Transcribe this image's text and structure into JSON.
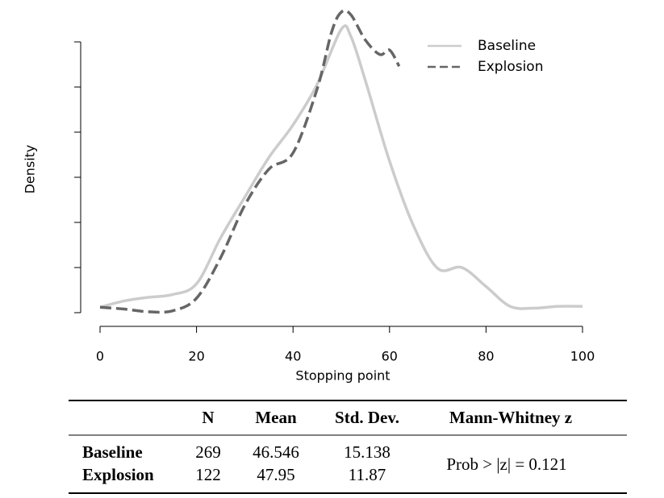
{
  "chart_data": {
    "type": "line",
    "x_label": "Stopping point",
    "y_label": "Density",
    "xlim": [
      0,
      100
    ],
    "xticks": [
      0,
      20,
      40,
      60,
      80,
      100
    ],
    "ylim": [
      0,
      0.03
    ],
    "yticks": [
      0,
      0.005,
      0.01,
      0.015,
      0.02,
      0.025,
      0.03
    ],
    "legend": "top-right",
    "series": [
      {
        "name": "Baseline",
        "color": "#cccccc",
        "dash": false,
        "x": [
          0,
          5,
          10,
          15,
          20,
          25,
          30,
          35,
          40,
          45,
          50,
          52,
          55,
          60,
          65,
          70,
          75,
          80,
          85,
          90,
          95,
          100
        ],
        "values": [
          0.0006,
          0.0013,
          0.0017,
          0.002,
          0.0032,
          0.0083,
          0.0128,
          0.0172,
          0.0208,
          0.0253,
          0.0314,
          0.0306,
          0.0257,
          0.0168,
          0.0096,
          0.0049,
          0.005,
          0.0029,
          0.0007,
          0.0005,
          0.0007,
          0.0007
        ]
      },
      {
        "name": "Explosion",
        "color": "#666666",
        "dash": true,
        "x": [
          0,
          5,
          10,
          15,
          20,
          25,
          30,
          35,
          40,
          45,
          48,
          50,
          52,
          55,
          58,
          60,
          62
        ],
        "values": [
          0.0006,
          0.0004,
          0.0001,
          0.0002,
          0.0016,
          0.0061,
          0.0119,
          0.0159,
          0.0177,
          0.0248,
          0.0311,
          0.0333,
          0.033,
          0.0302,
          0.0286,
          0.0291,
          0.0273
        ]
      }
    ]
  },
  "table": {
    "header": [
      "N",
      "Mean",
      "Std. Dev.",
      "Mann-Whitney z"
    ],
    "rows": [
      {
        "label": "Baseline",
        "n": 269,
        "mean": 46.546,
        "sd": 15.138
      },
      {
        "label": "Explosion",
        "n": 122,
        "mean": 47.95,
        "sd": 11.87
      }
    ],
    "test": "Prob > |z| = 0.121"
  }
}
